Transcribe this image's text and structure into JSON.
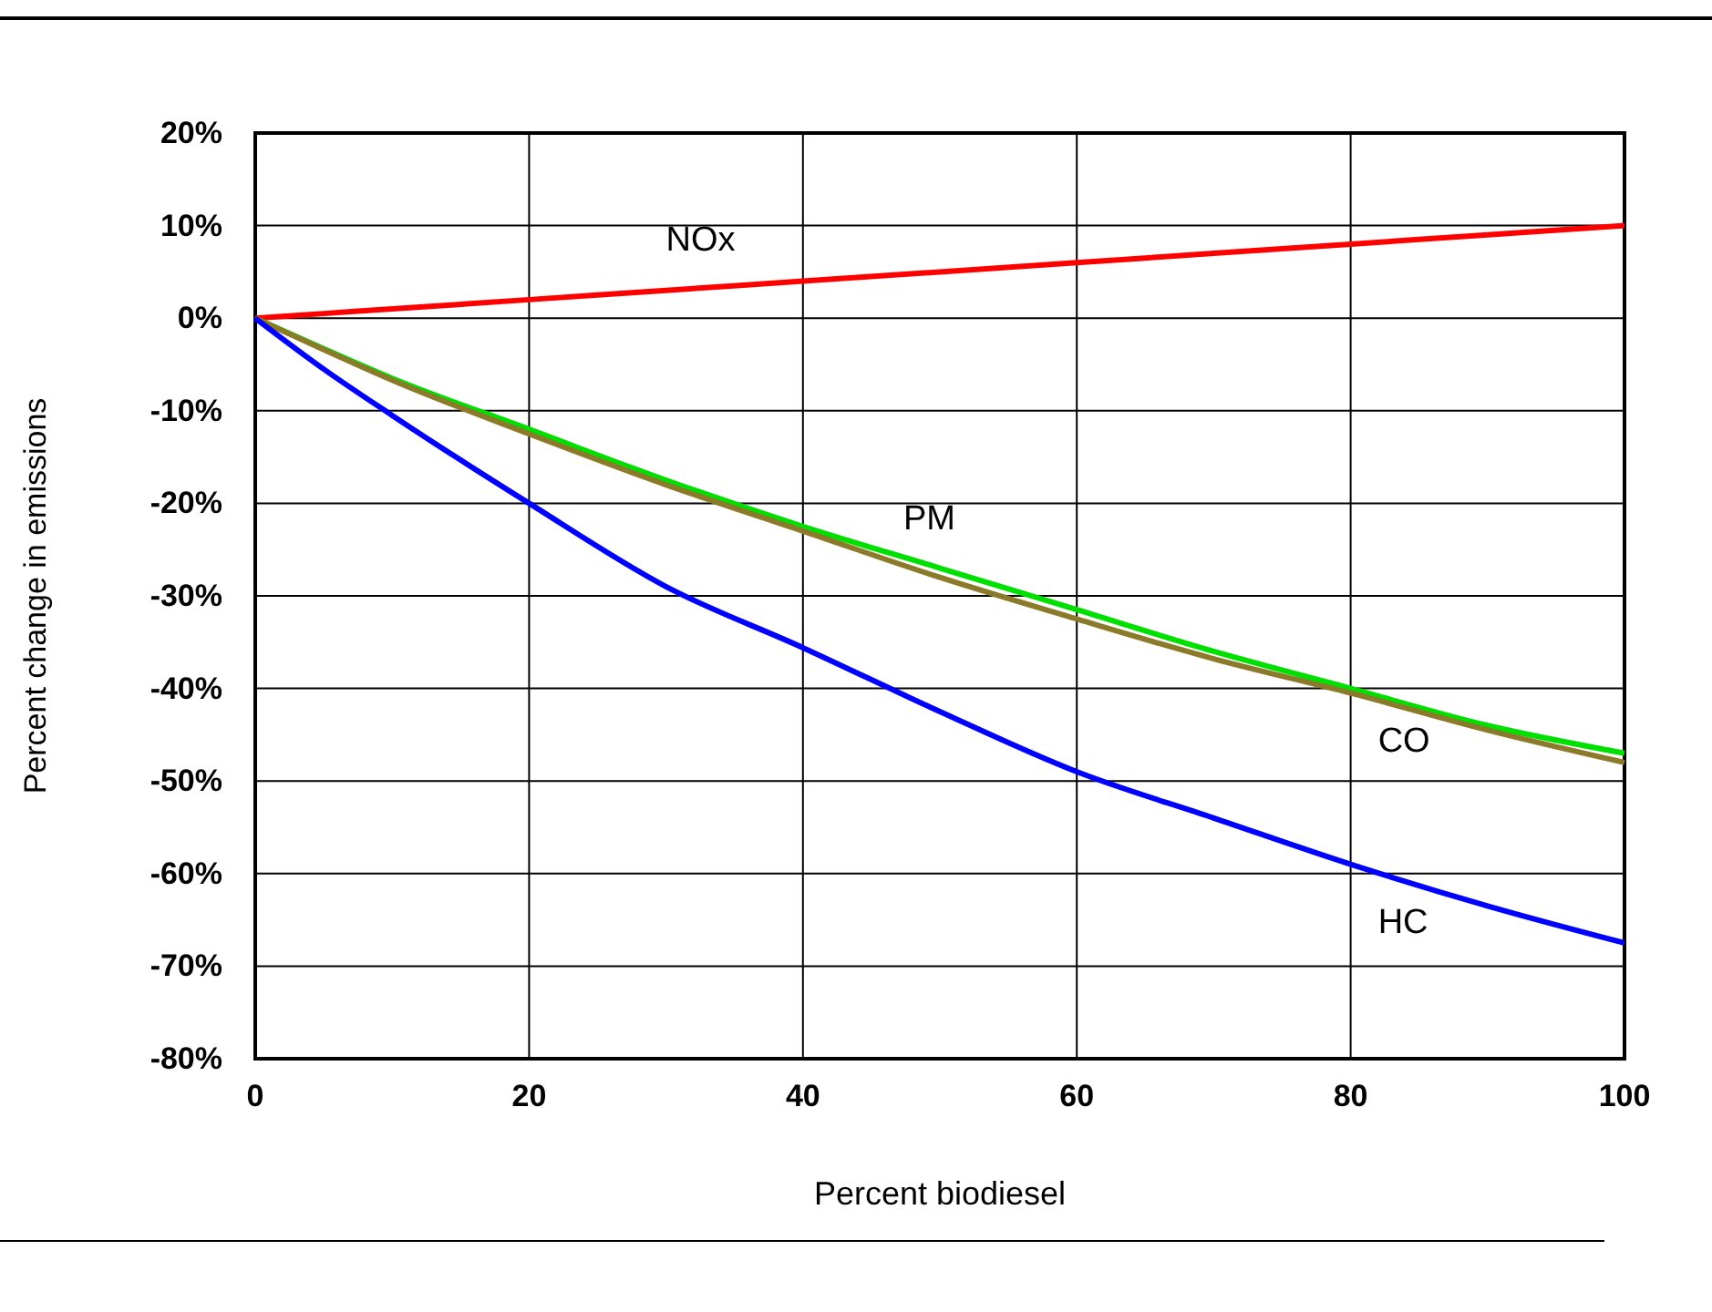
{
  "chart_data": {
    "type": "line",
    "xlabel": "Percent biodiesel",
    "ylabel": "Percent change in emissions",
    "x": [
      0,
      5,
      10,
      20,
      30,
      40,
      50,
      60,
      70,
      80,
      90,
      100
    ],
    "series": [
      {
        "name": "NOx",
        "color": "#ff0000",
        "values": [
          0,
          0.5,
          1,
          2,
          3,
          4,
          5,
          6,
          7,
          8,
          9,
          10
        ]
      },
      {
        "name": "PM",
        "color": "#00e000",
        "values": [
          0,
          -3.3,
          -6.5,
          -12,
          -17.5,
          -22.5,
          -27,
          -31.5,
          -36,
          -40,
          -44,
          -47
        ]
      },
      {
        "name": "CO",
        "color": "#8b7a2a",
        "values": [
          0,
          -3.4,
          -6.7,
          -12.5,
          -18,
          -23,
          -28,
          -32.5,
          -36.8,
          -40.5,
          -44.5,
          -48
        ]
      },
      {
        "name": "HC",
        "color": "#0000ff",
        "values": [
          0,
          -5.5,
          -10.5,
          -20,
          -29,
          -35.6,
          -42.5,
          -49,
          -54,
          -59,
          -63.5,
          -67.5
        ]
      }
    ],
    "xlim": [
      0,
      100
    ],
    "xticks": [
      0,
      20,
      40,
      60,
      80,
      100
    ],
    "ylim": [
      -80,
      20
    ],
    "yticks": [
      {
        "value": -80,
        "label": "-80%"
      },
      {
        "value": -70,
        "label": "-70%"
      },
      {
        "value": -60,
        "label": "-60%"
      },
      {
        "value": -50,
        "label": "-50%"
      },
      {
        "value": -40,
        "label": "-40%"
      },
      {
        "value": -30,
        "label": "-30%"
      },
      {
        "value": -20,
        "label": "-20%"
      },
      {
        "value": -10,
        "label": "-10%"
      },
      {
        "value": 0,
        "label": "0%"
      },
      {
        "value": 10,
        "label": "10%"
      },
      {
        "value": 20,
        "label": "20%"
      }
    ],
    "grid": true,
    "marker": "none",
    "line_style": "solid"
  }
}
